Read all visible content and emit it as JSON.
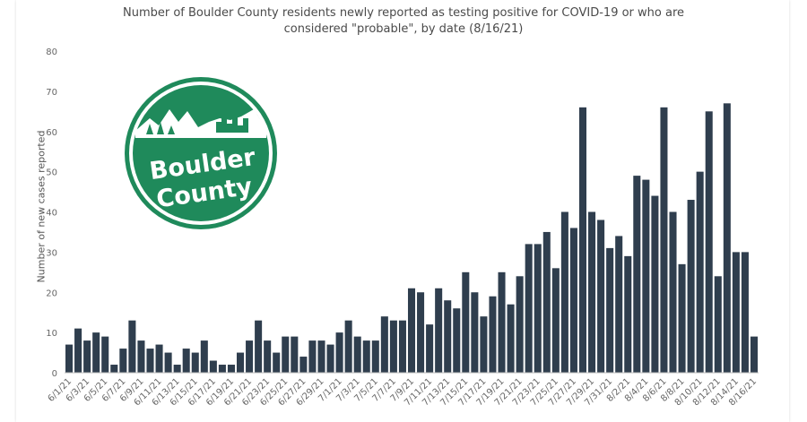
{
  "chart_data": {
    "type": "bar",
    "title_lines": [
      "Number of Boulder County residents newly reported as testing positive for COVID-19 or who are",
      "considered \"probable\", by date (8/16/21)"
    ],
    "ylabel": "Number of new cases reported",
    "xlabel": "",
    "ylim": [
      0,
      80
    ],
    "yticks": [
      0,
      10,
      20,
      30,
      40,
      50,
      60,
      70,
      80
    ],
    "grid": false,
    "bar_color": "#2f3e4e",
    "categories": [
      "6/1/21",
      "6/2/21",
      "6/3/21",
      "6/4/21",
      "6/5/21",
      "6/6/21",
      "6/7/21",
      "6/8/21",
      "6/9/21",
      "6/10/21",
      "6/11/21",
      "6/12/21",
      "6/13/21",
      "6/14/21",
      "6/15/21",
      "6/16/21",
      "6/17/21",
      "6/18/21",
      "6/19/21",
      "6/20/21",
      "6/21/21",
      "6/22/21",
      "6/23/21",
      "6/24/21",
      "6/25/21",
      "6/26/21",
      "6/27/21",
      "6/28/21",
      "6/29/21",
      "6/30/21",
      "7/1/21",
      "7/2/21",
      "7/3/21",
      "7/4/21",
      "7/5/21",
      "7/6/21",
      "7/7/21",
      "7/8/21",
      "7/9/21",
      "7/10/21",
      "7/11/21",
      "7/12/21",
      "7/13/21",
      "7/14/21",
      "7/15/21",
      "7/16/21",
      "7/17/21",
      "7/18/21",
      "7/19/21",
      "7/20/21",
      "7/21/21",
      "7/22/21",
      "7/23/21",
      "7/24/21",
      "7/25/21",
      "7/26/21",
      "7/27/21",
      "7/28/21",
      "7/29/21",
      "7/30/21",
      "7/31/21",
      "8/1/21",
      "8/2/21",
      "8/3/21",
      "8/4/21",
      "8/5/21",
      "8/6/21",
      "8/7/21",
      "8/8/21",
      "8/9/21",
      "8/10/21",
      "8/11/21",
      "8/12/21",
      "8/13/21",
      "8/14/21",
      "8/15/21",
      "8/16/21"
    ],
    "values": [
      7,
      11,
      8,
      10,
      9,
      2,
      6,
      13,
      8,
      6,
      7,
      5,
      2,
      6,
      5,
      8,
      3,
      2,
      2,
      5,
      8,
      13,
      8,
      5,
      9,
      9,
      4,
      8,
      8,
      7,
      10,
      13,
      9,
      8,
      8,
      14,
      13,
      13,
      21,
      20,
      12,
      21,
      18,
      16,
      25,
      20,
      14,
      19,
      25,
      17,
      24,
      32,
      32,
      35,
      26,
      40,
      36,
      66,
      40,
      38,
      31,
      34,
      29,
      49,
      48,
      44,
      66,
      40,
      27,
      43,
      50,
      65,
      24,
      67,
      30,
      30,
      9
    ],
    "xtick_labels": [
      "6/1/21",
      "6/3/21",
      "6/5/21",
      "6/7/21",
      "6/9/21",
      "6/11/21",
      "6/13/21",
      "6/15/21",
      "6/17/21",
      "6/19/21",
      "6/21/21",
      "6/23/21",
      "6/25/21",
      "6/27/21",
      "6/29/21",
      "7/1/21",
      "7/3/21",
      "7/5/21",
      "7/7/21",
      "7/9/21",
      "7/11/21",
      "7/13/21",
      "7/15/21",
      "7/17/21",
      "7/19/21",
      "7/21/21",
      "7/23/21",
      "7/25/21",
      "7/27/21",
      "7/29/21",
      "7/31/21",
      "8/2/21",
      "8/4/21",
      "8/6/21",
      "8/8/21",
      "8/10/21",
      "8/12/21",
      "8/14/21",
      "8/16/21"
    ]
  },
  "logo": {
    "line1": "Boulder",
    "line2": "County",
    "color": "#1f8a5b"
  }
}
